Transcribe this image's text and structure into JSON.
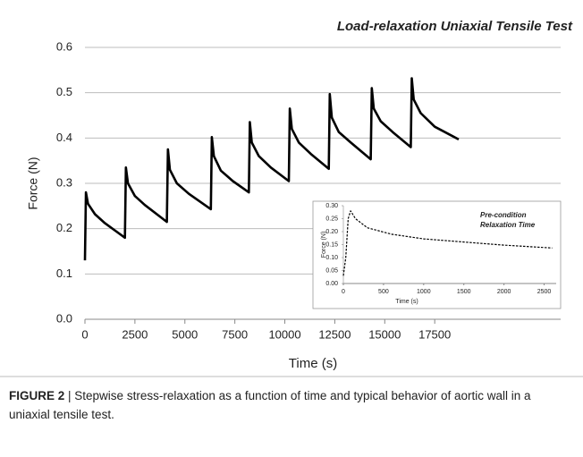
{
  "chart_data": [
    {
      "type": "line",
      "title": "Load-relaxation Uniaxial Tensile Test",
      "xlabel": "Time (s)",
      "ylabel": "Force (N)",
      "x": [
        0,
        50,
        150,
        500,
        1000,
        2000,
        2050,
        2150,
        2500,
        3000,
        4100,
        4150,
        4250,
        4600,
        5200,
        6300,
        6350,
        6450,
        6800,
        7400,
        8200,
        8250,
        8350,
        8700,
        9300,
        10200,
        10250,
        10350,
        10700,
        11300,
        12200,
        12250,
        12350,
        12700,
        13300,
        14300,
        14350,
        14450,
        14800,
        15400,
        16300,
        16350,
        16450,
        16800,
        17500,
        18700
      ],
      "series": [
        {
          "color": "#000000",
          "line_style": "solid",
          "values": [
            0.13,
            0.28,
            0.255,
            0.232,
            0.212,
            0.18,
            0.335,
            0.3,
            0.272,
            0.252,
            0.215,
            0.375,
            0.33,
            0.3,
            0.277,
            0.243,
            0.402,
            0.36,
            0.328,
            0.305,
            0.28,
            0.435,
            0.39,
            0.36,
            0.335,
            0.305,
            0.465,
            0.42,
            0.39,
            0.365,
            0.332,
            0.497,
            0.445,
            0.413,
            0.39,
            0.353,
            0.51,
            0.465,
            0.437,
            0.413,
            0.38,
            0.532,
            0.485,
            0.455,
            0.425,
            0.397
          ]
        }
      ],
      "xlim": [
        0,
        23800
      ],
      "xticks": [
        0,
        2500,
        5000,
        7500,
        10000,
        12500,
        15000,
        17500
      ],
      "ylim": [
        0,
        0.6
      ],
      "yticks": [
        {
          "value": 0,
          "label": "0.0"
        },
        {
          "value": 0.1,
          "label": "0.1"
        },
        {
          "value": 0.2,
          "label": "0.2"
        },
        {
          "value": 0.3,
          "label": "0.3"
        },
        {
          "value": 0.4,
          "label": "0.4"
        },
        {
          "value": 0.5,
          "label": "0.5"
        },
        {
          "value": 0.6,
          "label": "0.6"
        }
      ],
      "grid": true
    },
    {
      "type": "line",
      "annotations": [
        "Pre-condition",
        "Relaxation Time"
      ],
      "xlabel": "Time (s)",
      "ylabel": "Force (N)",
      "x": [
        0,
        30,
        60,
        90,
        150,
        300,
        600,
        1000,
        1500,
        2000,
        2600
      ],
      "series": [
        {
          "color": "#000000",
          "line_style": "dashed",
          "values": [
            0.03,
            0.1,
            0.25,
            0.28,
            0.25,
            0.215,
            0.19,
            0.172,
            0.16,
            0.148,
            0.137
          ]
        }
      ],
      "xlim": [
        0,
        2650
      ],
      "xticks": [
        0,
        500,
        1000,
        1500,
        2000,
        2500
      ],
      "ylim": [
        0,
        0.3
      ],
      "yticks": [
        {
          "value": 0,
          "label": "0.00"
        },
        {
          "value": 0.05,
          "label": "0.05"
        },
        {
          "value": 0.1,
          "label": "0.10"
        },
        {
          "value": 0.15,
          "label": "0.15"
        },
        {
          "value": 0.2,
          "label": "0.20"
        },
        {
          "value": 0.25,
          "label": "0.25"
        },
        {
          "value": 0.3,
          "label": "0.30"
        }
      ],
      "grid": false
    }
  ],
  "caption": {
    "label": "FIGURE 2",
    "text": "| Stepwise stress-relaxation as a function of time and typical behavior of aortic wall in a uniaxial tensile test."
  }
}
